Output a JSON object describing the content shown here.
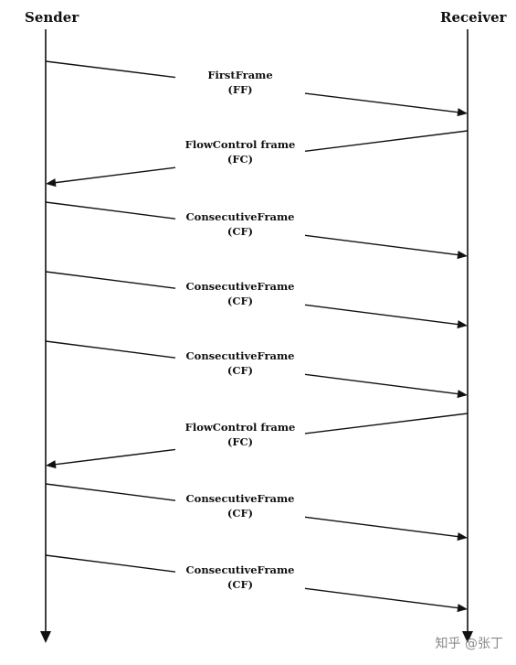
{
  "lifelines": {
    "sender": "Sender",
    "receiver": "Receiver"
  },
  "messages": [
    {
      "name": "FirstFrame",
      "abbr": "(FF)",
      "from": "sender",
      "to": "receiver"
    },
    {
      "name": "FlowControl frame",
      "abbr": "(FC)",
      "from": "receiver",
      "to": "sender"
    },
    {
      "name": "ConsecutiveFrame",
      "abbr": "(CF)",
      "from": "sender",
      "to": "receiver"
    },
    {
      "name": "ConsecutiveFrame",
      "abbr": "(CF)",
      "from": "sender",
      "to": "receiver"
    },
    {
      "name": "ConsecutiveFrame",
      "abbr": "(CF)",
      "from": "sender",
      "to": "receiver"
    },
    {
      "name": "FlowControl frame",
      "abbr": "(FC)",
      "from": "receiver",
      "to": "sender"
    },
    {
      "name": "ConsecutiveFrame",
      "abbr": "(CF)",
      "from": "sender",
      "to": "receiver"
    },
    {
      "name": "ConsecutiveFrame",
      "abbr": "(CF)",
      "from": "sender",
      "to": "receiver"
    }
  ],
  "watermark": "知乎 @张丁",
  "colors": {
    "line": "#111111",
    "text": "#111111",
    "watermark": "#8a8a8a"
  }
}
